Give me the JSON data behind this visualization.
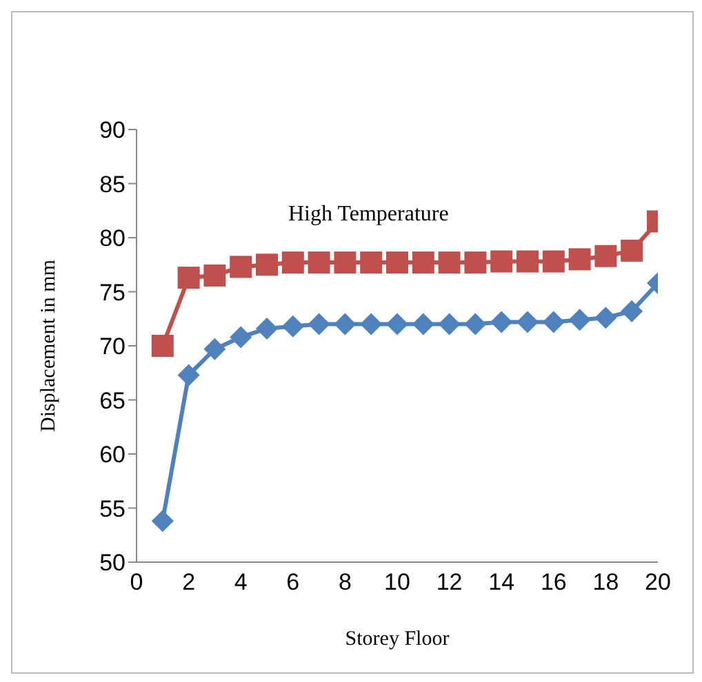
{
  "chart_data": {
    "type": "line",
    "title": "High Temperature",
    "xlabel": "Storey Floor",
    "ylabel": "Displacement in mm",
    "x": [
      1,
      2,
      3,
      4,
      5,
      6,
      7,
      8,
      9,
      10,
      11,
      12,
      13,
      14,
      15,
      16,
      17,
      18,
      19,
      20
    ],
    "series": [
      {
        "color": "#c0504d",
        "marker": "square",
        "values": [
          70,
          76.3,
          76.5,
          77.3,
          77.5,
          77.7,
          77.7,
          77.7,
          77.7,
          77.7,
          77.7,
          77.7,
          77.7,
          77.8,
          77.8,
          77.8,
          78,
          78.3,
          78.8,
          81.5
        ]
      },
      {
        "color": "#4f81bd",
        "marker": "diamond",
        "values": [
          53.8,
          67.3,
          69.7,
          70.8,
          71.6,
          71.8,
          72,
          72,
          72,
          72,
          72,
          72,
          72,
          72.2,
          72.2,
          72.2,
          72.4,
          72.6,
          73.2,
          75.8
        ]
      }
    ],
    "xlim": [
      0,
      20
    ],
    "xticks": [
      0,
      2,
      4,
      6,
      8,
      10,
      12,
      14,
      16,
      18,
      20
    ],
    "ylim": [
      50,
      90
    ],
    "yticks": [
      50,
      55,
      60,
      65,
      70,
      75,
      80,
      85,
      90
    ]
  }
}
